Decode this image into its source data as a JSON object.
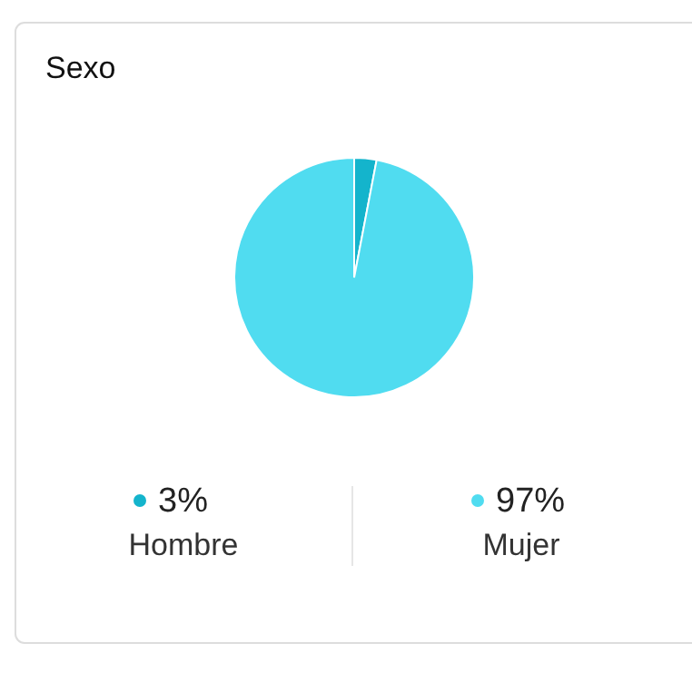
{
  "chart_data": {
    "type": "pie",
    "title": "Sexo",
    "categories": [
      "Hombre",
      "Mujer"
    ],
    "values": [
      3,
      97
    ],
    "value_labels": [
      "3%",
      "97%"
    ],
    "colors": [
      "#14b4cc",
      "#50dcf0"
    ],
    "legend": "bottom"
  }
}
